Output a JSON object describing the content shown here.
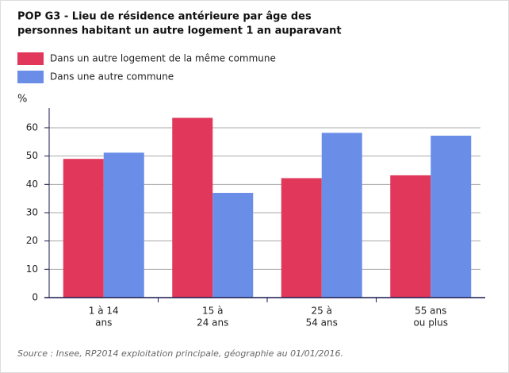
{
  "chart_data": {
    "type": "bar",
    "title": [
      "POP G3 - Lieu de résidence antérieure par âge des",
      "personnes habitant un autre logement 1 an auparavant"
    ],
    "y_label": "%",
    "categories": [
      [
        "1 à 14",
        "ans"
      ],
      [
        "15 à",
        "24 ans"
      ],
      [
        "25 à",
        "54 ans"
      ],
      [
        "55 ans",
        "ou plus"
      ]
    ],
    "series": [
      {
        "name": "Dans un autre logement de la même commune",
        "color": "#e0375a",
        "values": [
          49,
          63.5,
          42.2,
          43.2
        ]
      },
      {
        "name": "Dans une autre commune",
        "color": "#6a8ee8",
        "values": [
          51.2,
          37,
          58.2,
          57.2
        ]
      }
    ],
    "ylim": [
      0,
      67
    ],
    "yticks": [
      0,
      10,
      20,
      30,
      40,
      50,
      60
    ],
    "grid": true,
    "source": "Source : Insee, RP2014 exploitation principale, géographie au 01/01/2016."
  }
}
